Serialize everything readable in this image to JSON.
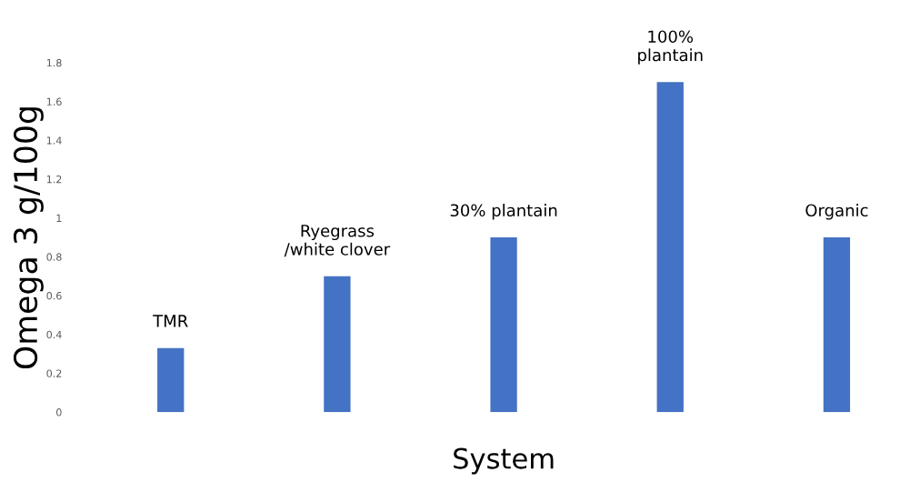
{
  "chart_data": {
    "type": "bar",
    "xlabel": "System",
    "ylabel": "Omega 3 g/100g",
    "categories": [
      "TMR",
      "Ryegrass\n/white clover",
      "30% plantain",
      "100%\nplantain",
      "Organic"
    ],
    "values": [
      0.33,
      0.7,
      0.9,
      1.7,
      0.9
    ],
    "color": "#4472c4",
    "ylim": [
      0,
      1.8
    ],
    "yticks": [
      0,
      0.2,
      0.4,
      0.6,
      0.8,
      {
        "value": 1,
        "label": "1"
      },
      1.2,
      1.4,
      1.6,
      1.8
    ],
    "grid": false,
    "legend": false
  }
}
